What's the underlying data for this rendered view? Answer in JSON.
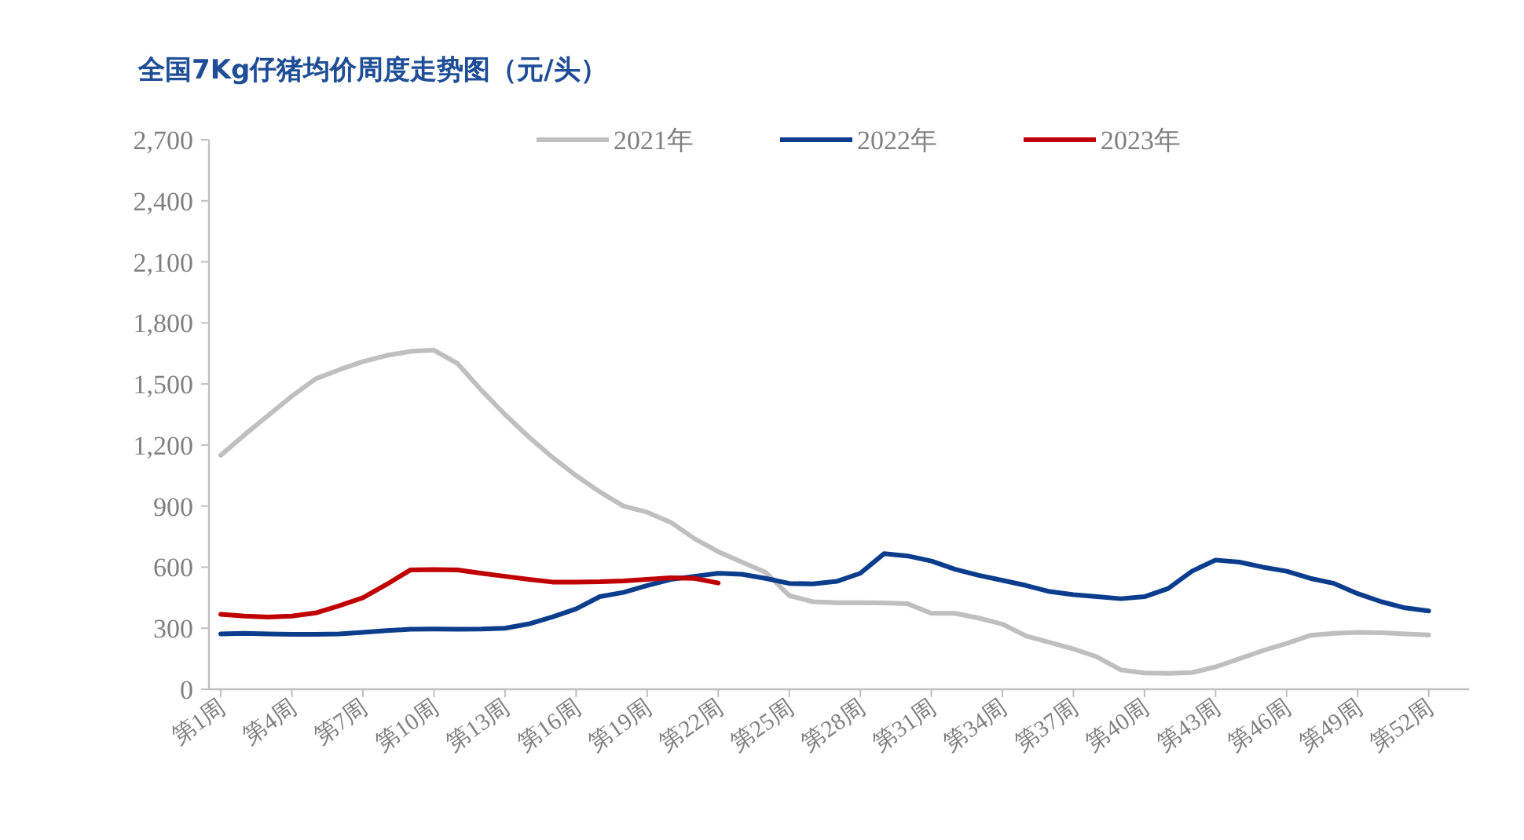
{
  "chart_data": {
    "type": "line",
    "title": "全国7Kg仔猪均价周度走势图（元/头）",
    "categories": [
      "第1周",
      null,
      null,
      "第4周",
      null,
      null,
      "第7周",
      null,
      null,
      "第10周",
      null,
      null,
      "第13周",
      null,
      null,
      "第16周",
      null,
      null,
      "第19周",
      null,
      null,
      "第22周",
      null,
      null,
      "第25周",
      null,
      null,
      "第28周",
      null,
      null,
      "第31周",
      null,
      null,
      "第34周",
      null,
      null,
      "第37周",
      null,
      null,
      "第40周",
      null,
      null,
      "第43周",
      null,
      null,
      "第46周",
      null,
      null,
      "第49周",
      null,
      null,
      "第52周"
    ],
    "series": [
      {
        "name": "2021年",
        "color": "#bfbfbf",
        "values": [
          1150,
          1250,
          1345,
          1440,
          1525,
          1570,
          1610,
          1640,
          1660,
          1666,
          1600,
          1470,
          1350,
          1240,
          1140,
          1050,
          970,
          900,
          870,
          820,
          740,
          676,
          625,
          575,
          460,
          430,
          425,
          425,
          424,
          420,
          373,
          373,
          350,
          320,
          262,
          230,
          198,
          159,
          95,
          80,
          78,
          82,
          110,
          150,
          190,
          225,
          265,
          275,
          280,
          278,
          272,
          267
        ]
      },
      {
        "name": "2022年",
        "color": "#0b3d8c",
        "values": [
          272,
          275,
          272,
          270,
          270,
          272,
          280,
          288,
          295,
          296,
          295,
          296,
          300,
          321,
          355,
          395,
          455,
          476,
          510,
          540,
          555,
          570,
          565,
          545,
          520,
          518,
          530,
          570,
          666,
          655,
          630,
          590,
          560,
          535,
          510,
          480,
          465,
          455,
          445,
          455,
          495,
          580,
          635,
          625,
          600,
          580,
          545,
          520,
          470,
          430,
          400,
          385
        ]
      },
      {
        "name": "2023年",
        "color": "#c00000",
        "values": [
          368,
          360,
          355,
          360,
          375,
          410,
          450,
          515,
          586,
          588,
          586,
          570,
          555,
          540,
          527,
          527,
          528,
          532,
          540,
          548,
          545,
          522,
          null,
          null,
          null,
          null,
          null,
          null,
          null,
          null,
          null,
          null,
          null,
          null,
          null,
          null,
          null,
          null,
          null,
          null,
          null,
          null,
          null,
          null,
          null,
          null,
          null,
          null,
          null,
          null,
          null,
          null
        ]
      }
    ],
    "ylim": [
      0,
      2700
    ],
    "yticks": [
      0,
      300,
      600,
      900,
      {
        "value": 1200,
        "label": "1,200"
      },
      {
        "value": 1500,
        "label": "1,500"
      },
      {
        "value": 1800,
        "label": "1,800"
      },
      {
        "value": 2100,
        "label": "2,100"
      },
      {
        "value": 2400,
        "label": "2,400"
      },
      {
        "value": 2700,
        "label": "2,700"
      }
    ],
    "legend": "top",
    "grid": false
  }
}
